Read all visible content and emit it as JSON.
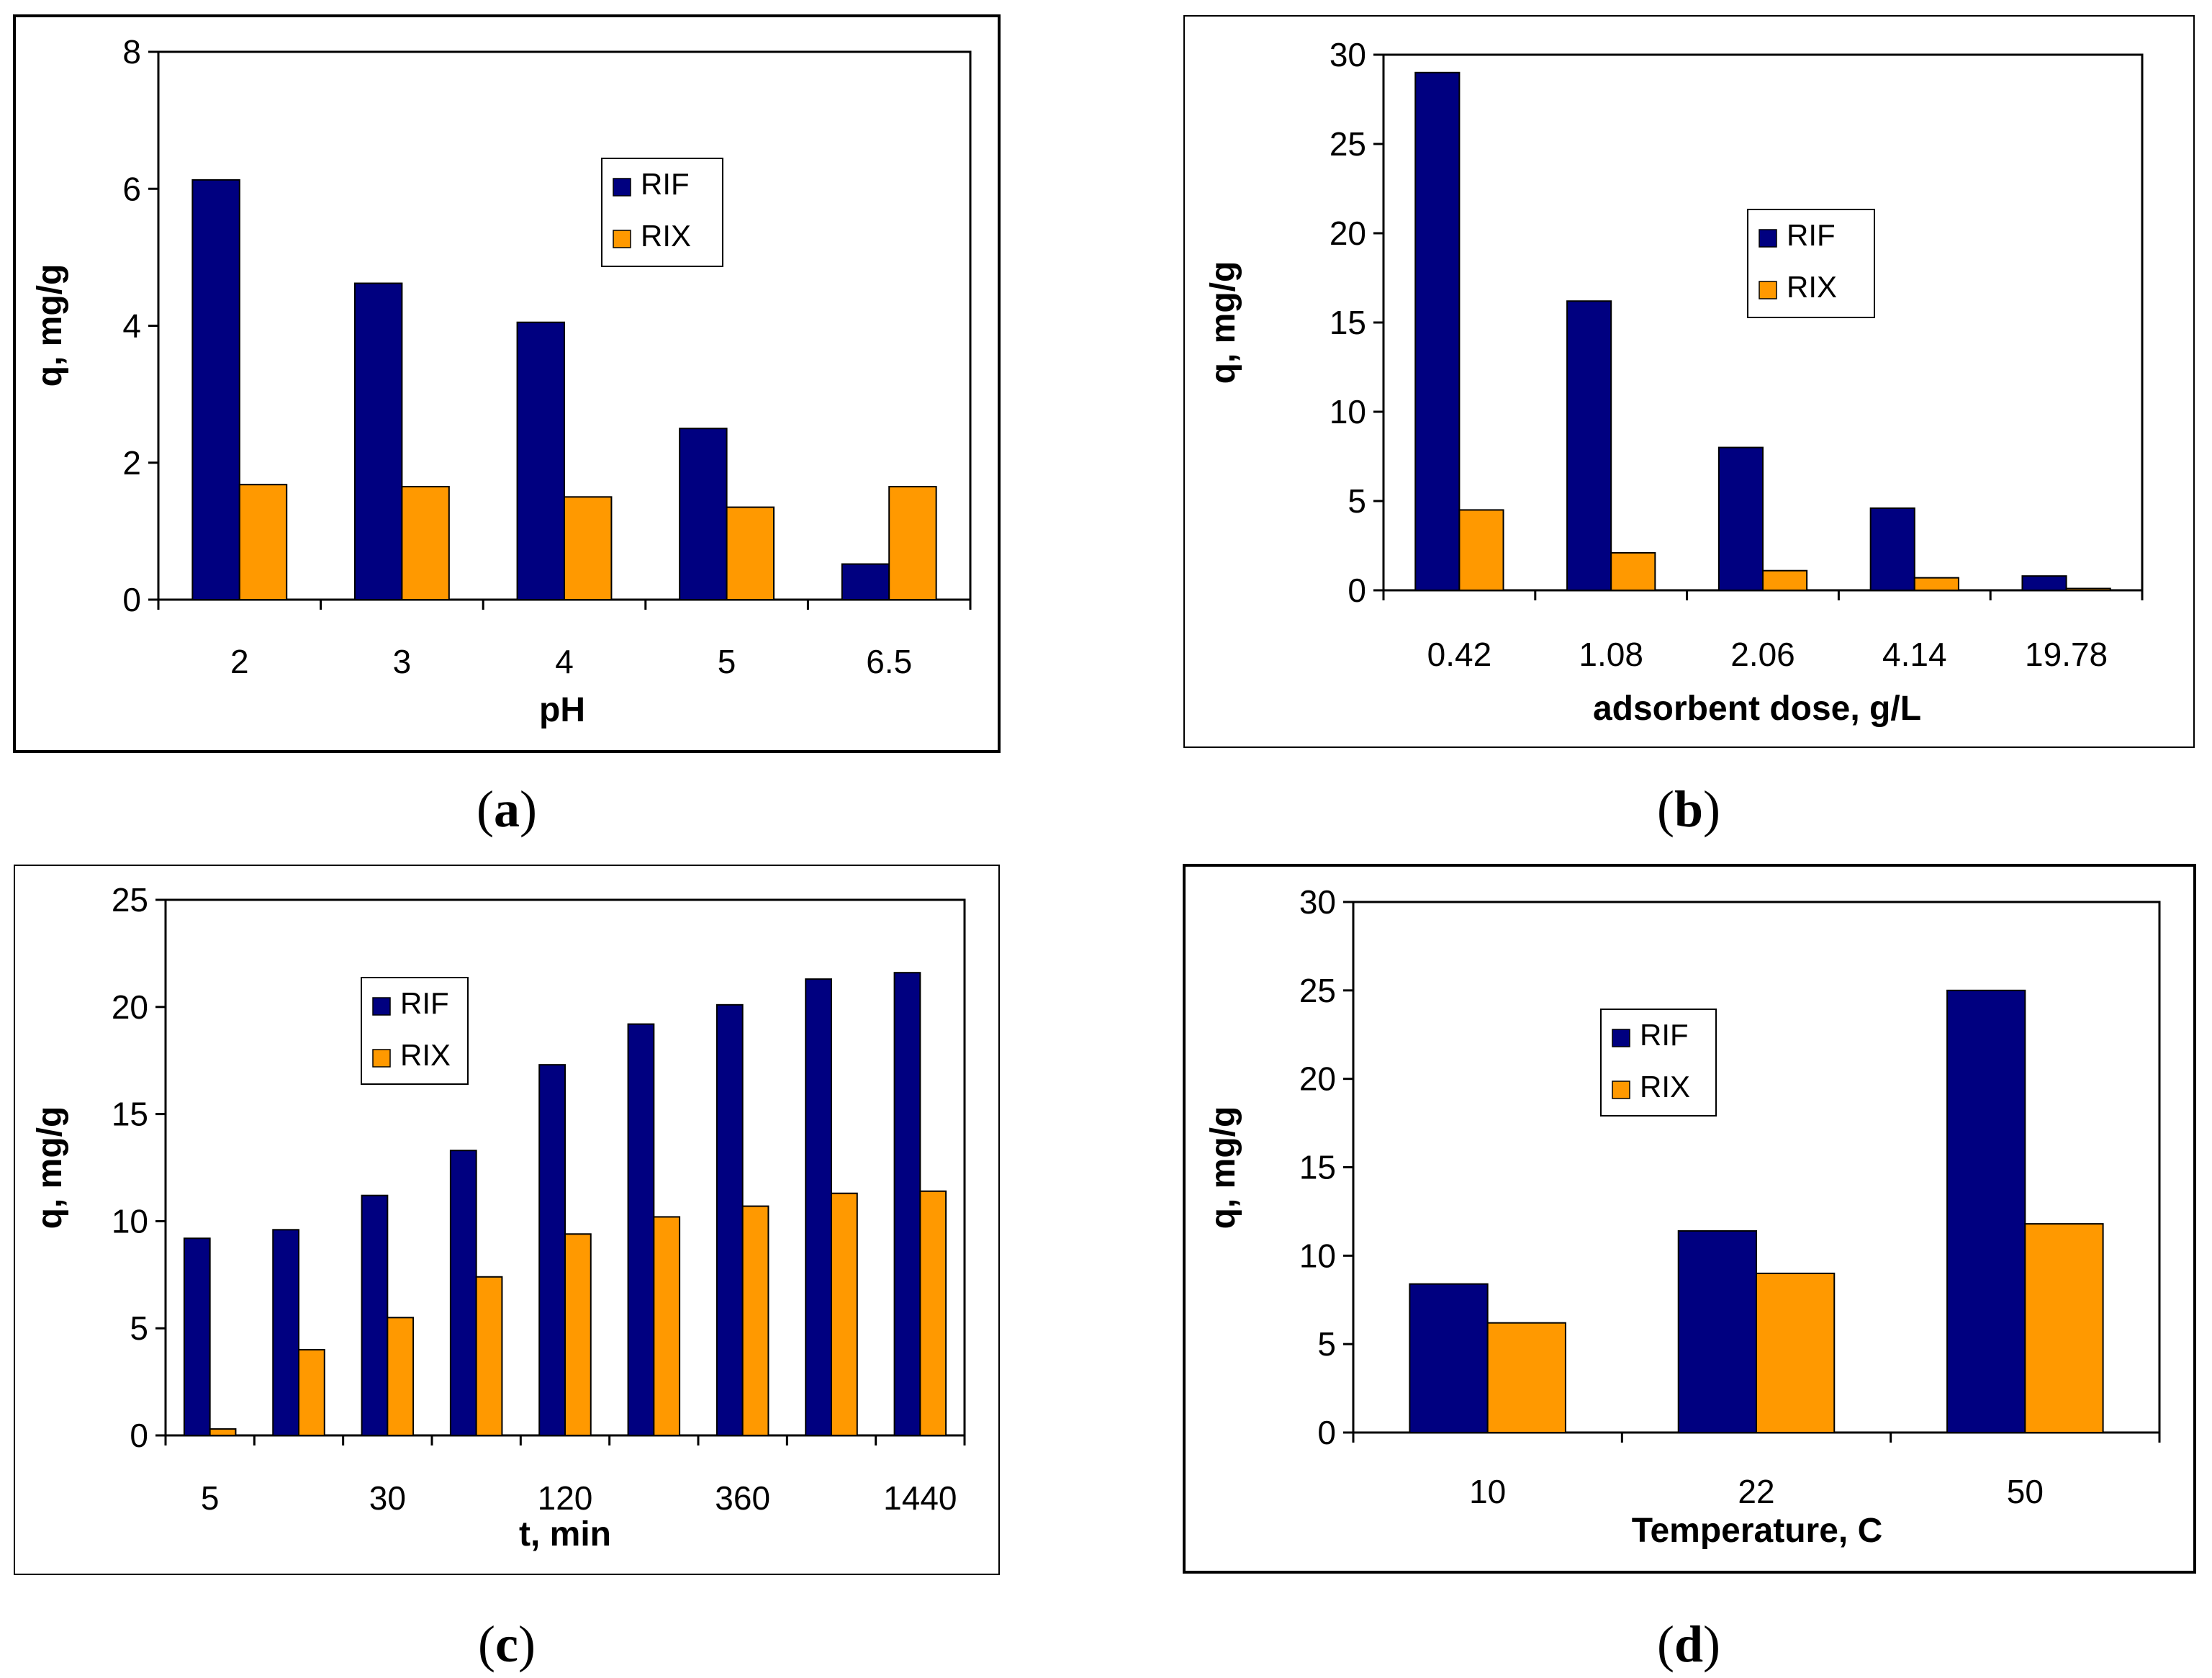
{
  "colors": {
    "RIF": "#000080",
    "RIX": "#ff9900"
  },
  "chart_data": [
    {
      "type": "bar",
      "panel": "a",
      "caption_letter": "a",
      "categories": [
        "2",
        "3",
        "4",
        "5",
        "6.5"
      ],
      "series": [
        {
          "name": "RIF",
          "values": [
            6.13,
            4.62,
            4.05,
            2.5,
            0.52
          ]
        },
        {
          "name": "RIX",
          "values": [
            1.68,
            1.65,
            1.5,
            1.35,
            1.65
          ]
        }
      ],
      "xlabel": "pH",
      "ylabel": "q, mg/g",
      "ylim": [
        0,
        8
      ],
      "yticks": [
        0,
        2,
        4,
        6,
        8
      ],
      "legend_position": "center-right",
      "grid": false
    },
    {
      "type": "bar",
      "panel": "b",
      "caption_letter": "b",
      "categories": [
        "0.42",
        "1.08",
        "2.06",
        "4.14",
        "19.78"
      ],
      "series": [
        {
          "name": "RIF",
          "values": [
            29.0,
            16.2,
            8.0,
            4.6,
            0.8
          ]
        },
        {
          "name": "RIX",
          "values": [
            4.5,
            2.1,
            1.1,
            0.7,
            0.1
          ]
        }
      ],
      "xlabel": "adsorbent dose, g/L",
      "ylabel": "q, mg/g",
      "ylim": [
        0,
        30
      ],
      "yticks": [
        0,
        5,
        10,
        15,
        20,
        25,
        30
      ],
      "legend_position": "center-right",
      "grid": false
    },
    {
      "type": "bar",
      "panel": "c",
      "caption_letter": "c",
      "categories": [
        "5",
        "",
        "30",
        "",
        "120",
        "",
        "360",
        "",
        "1440"
      ],
      "series": [
        {
          "name": "RIF",
          "values": [
            9.2,
            9.6,
            11.2,
            13.3,
            17.3,
            19.2,
            20.1,
            21.3,
            21.6
          ]
        },
        {
          "name": "RIX",
          "values": [
            0.3,
            4.0,
            5.5,
            7.4,
            9.4,
            10.2,
            10.7,
            11.3,
            11.4
          ]
        }
      ],
      "xlabel": "t, min",
      "ylabel": "q, mg/g",
      "ylim": [
        0,
        25
      ],
      "yticks": [
        0,
        5,
        10,
        15,
        20,
        25
      ],
      "legend_position": "upper-left",
      "grid": false
    },
    {
      "type": "bar",
      "panel": "d",
      "caption_letter": "d",
      "categories": [
        "10",
        "22",
        "50"
      ],
      "series": [
        {
          "name": "RIF",
          "values": [
            8.4,
            11.4,
            25.0
          ]
        },
        {
          "name": "RIX",
          "values": [
            6.2,
            9.0,
            11.8
          ]
        }
      ],
      "xlabel": "Temperature, C",
      "ylabel": "q, mg/g",
      "ylim": [
        0,
        30
      ],
      "yticks": [
        0,
        5,
        10,
        15,
        20,
        25,
        30
      ],
      "legend_position": "upper-left",
      "grid": false
    }
  ]
}
